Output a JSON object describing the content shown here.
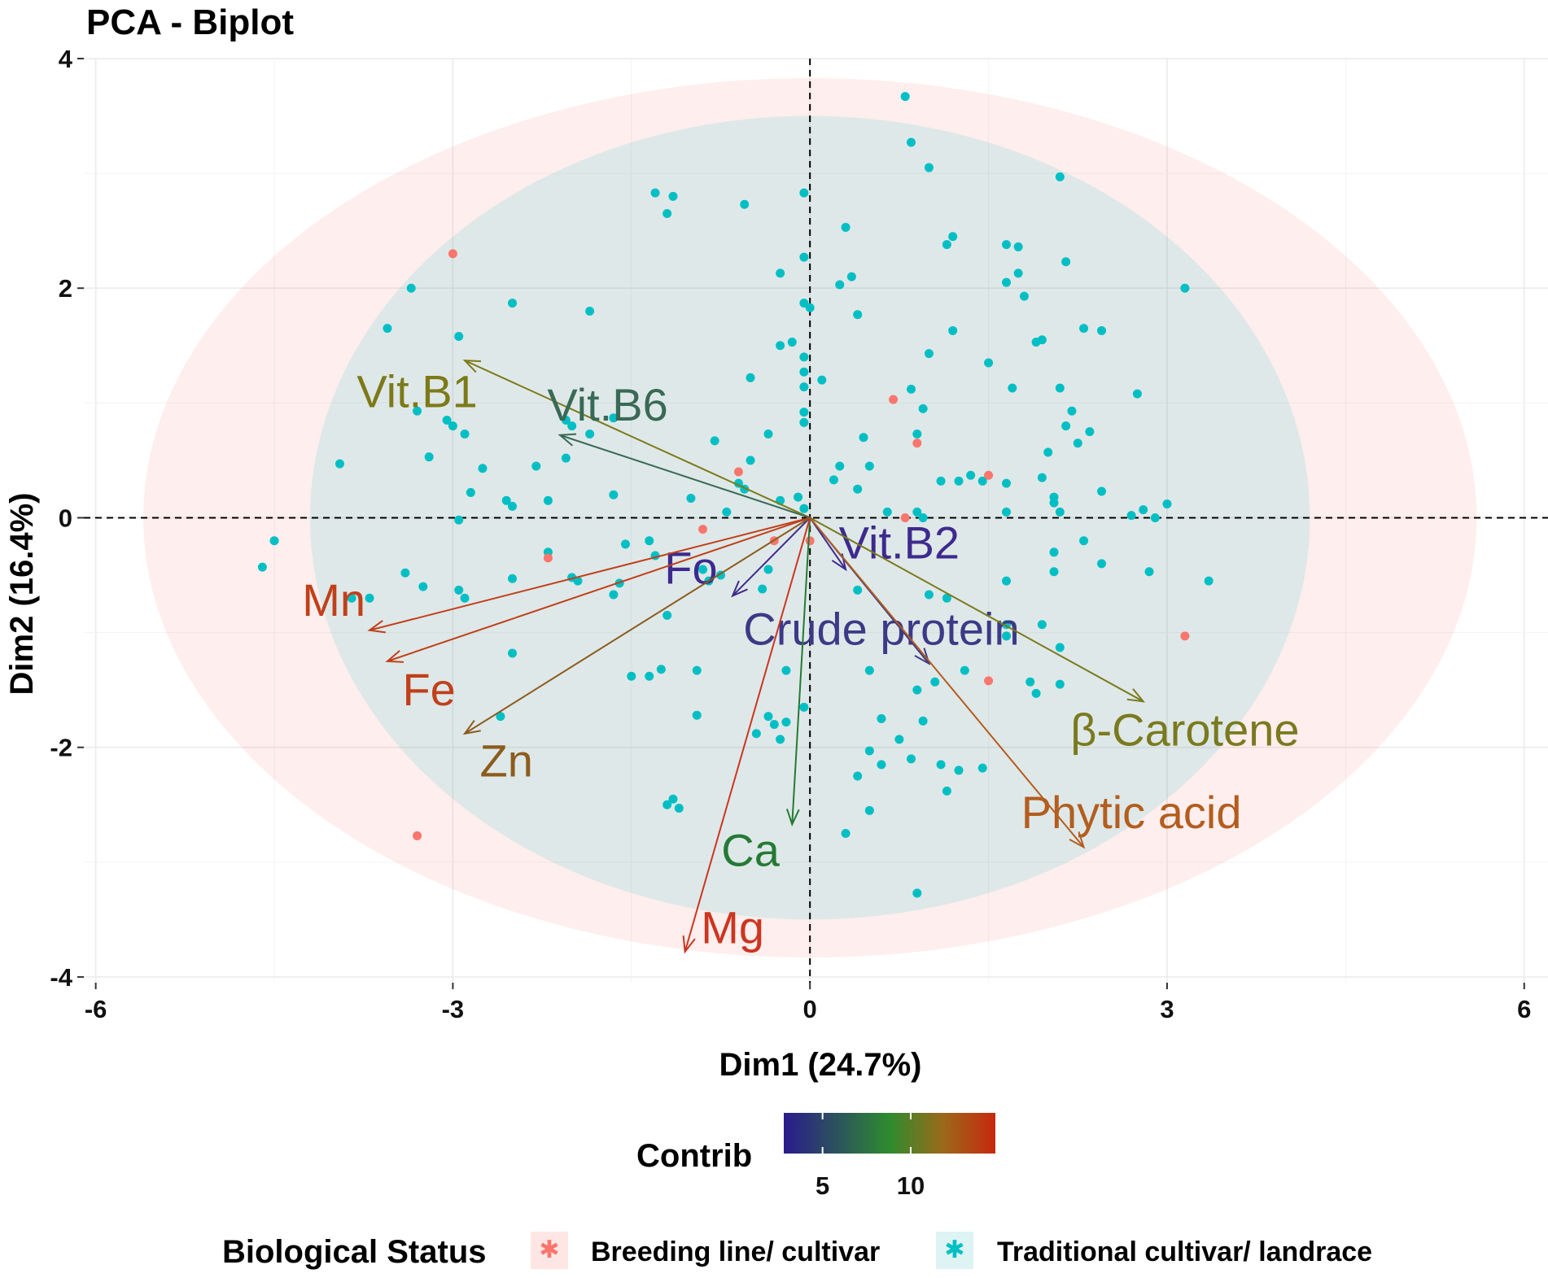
{
  "chart_data": {
    "type": "scatter",
    "title": "PCA - Biplot",
    "xlabel": "Dim1 (24.7%)",
    "ylabel": "Dim2 (16.4%)",
    "xlim": [
      -6.1,
      6.2
    ],
    "ylim": [
      -4.05,
      4.0
    ],
    "x_ticks": [
      -6,
      -3,
      0,
      3,
      6
    ],
    "y_ticks": [
      -4,
      -2,
      0,
      2,
      4
    ],
    "grid": true,
    "reference_lines": {
      "x": 0,
      "y": 0,
      "style": "dashed"
    },
    "groups": [
      {
        "name": "Breeding line/ cultivar",
        "color": "#F8766D"
      },
      {
        "name": "Traditional cultivar/ landrace",
        "color": "#00BFC4"
      }
    ],
    "ellipses": [
      {
        "group": "Breeding line/ cultivar",
        "center": [
          0.0,
          0.0
        ],
        "rx": 5.6,
        "ry": 3.83,
        "color": "#F8766D"
      },
      {
        "group": "Traditional cultivar/ landrace",
        "center": [
          0.0,
          0.0
        ],
        "rx": 4.2,
        "ry": 3.5,
        "color": "#00BFC4"
      }
    ],
    "points": {
      "Breeding line/ cultivar": [
        [
          -3.0,
          2.3
        ],
        [
          -3.3,
          -2.77
        ],
        [
          0.7,
          1.03
        ],
        [
          0.9,
          0.65
        ],
        [
          1.5,
          0.37
        ],
        [
          -0.6,
          0.4
        ],
        [
          -0.9,
          -0.1
        ],
        [
          -2.2,
          -0.35
        ],
        [
          -0.3,
          -0.2
        ],
        [
          0.8,
          0.0
        ],
        [
          1.5,
          -1.42
        ],
        [
          3.15,
          -1.03
        ],
        [
          0.0,
          -0.2
        ]
      ],
      "Traditional cultivar/ landrace": [
        [
          0.8,
          3.67
        ],
        [
          0.85,
          3.27
        ],
        [
          1.0,
          3.05
        ],
        [
          2.1,
          2.97
        ],
        [
          -1.3,
          2.83
        ],
        [
          -1.15,
          2.8
        ],
        [
          -1.2,
          2.65
        ],
        [
          -0.55,
          2.73
        ],
        [
          -0.05,
          2.83
        ],
        [
          0.3,
          2.53
        ],
        [
          1.2,
          2.45
        ],
        [
          1.15,
          2.38
        ],
        [
          1.65,
          2.38
        ],
        [
          1.75,
          2.36
        ],
        [
          2.15,
          2.23
        ],
        [
          -0.05,
          2.27
        ],
        [
          -0.25,
          2.13
        ],
        [
          0.35,
          2.1
        ],
        [
          0.25,
          2.03
        ],
        [
          1.75,
          2.13
        ],
        [
          1.65,
          2.05
        ],
        [
          -0.05,
          1.87
        ],
        [
          0.0,
          1.83
        ],
        [
          3.15,
          2.0
        ],
        [
          1.8,
          1.93
        ],
        [
          -3.35,
          2.0
        ],
        [
          -2.5,
          1.87
        ],
        [
          -1.85,
          1.8
        ],
        [
          0.4,
          1.77
        ],
        [
          -3.55,
          1.65
        ],
        [
          -2.95,
          1.58
        ],
        [
          1.2,
          1.63
        ],
        [
          2.3,
          1.65
        ],
        [
          2.45,
          1.63
        ],
        [
          1.9,
          1.53
        ],
        [
          1.95,
          1.55
        ],
        [
          -0.25,
          1.5
        ],
        [
          -0.15,
          1.53
        ],
        [
          -0.05,
          1.4
        ],
        [
          1.0,
          1.43
        ],
        [
          1.5,
          1.35
        ],
        [
          -0.5,
          1.22
        ],
        [
          -0.05,
          1.27
        ],
        [
          0.1,
          1.2
        ],
        [
          -0.05,
          1.14
        ],
        [
          0.85,
          1.12
        ],
        [
          1.7,
          1.13
        ],
        [
          2.1,
          1.13
        ],
        [
          2.75,
          1.08
        ],
        [
          0.95,
          0.95
        ],
        [
          2.2,
          0.93
        ],
        [
          -3.3,
          0.93
        ],
        [
          -3.05,
          0.85
        ],
        [
          -3.0,
          0.8
        ],
        [
          -2.9,
          0.73
        ],
        [
          -2.05,
          0.85
        ],
        [
          -2.0,
          0.8
        ],
        [
          -1.65,
          0.87
        ],
        [
          -1.85,
          0.73
        ],
        [
          -0.05,
          0.92
        ],
        [
          -0.05,
          0.83
        ],
        [
          -0.35,
          0.73
        ],
        [
          0.45,
          0.7
        ],
        [
          0.9,
          0.73
        ],
        [
          2.15,
          0.8
        ],
        [
          2.35,
          0.75
        ],
        [
          -0.8,
          0.67
        ],
        [
          2.25,
          0.65
        ],
        [
          2.0,
          0.57
        ],
        [
          -3.2,
          0.53
        ],
        [
          -3.95,
          0.47
        ],
        [
          -2.75,
          0.43
        ],
        [
          -2.3,
          0.45
        ],
        [
          -2.05,
          0.52
        ],
        [
          -0.5,
          0.5
        ],
        [
          0.25,
          0.45
        ],
        [
          0.5,
          0.45
        ],
        [
          1.25,
          0.32
        ],
        [
          1.35,
          0.37
        ],
        [
          1.95,
          0.35
        ],
        [
          1.65,
          0.3
        ],
        [
          -2.85,
          0.22
        ],
        [
          -1.65,
          0.2
        ],
        [
          -0.55,
          0.25
        ],
        [
          -0.6,
          0.3
        ],
        [
          0.2,
          0.33
        ],
        [
          1.1,
          0.32
        ],
        [
          1.45,
          0.32
        ],
        [
          -2.55,
          0.15
        ],
        [
          -2.2,
          0.15
        ],
        [
          -1.0,
          0.17
        ],
        [
          -0.25,
          0.15
        ],
        [
          -0.1,
          0.18
        ],
        [
          0.4,
          0.25
        ],
        [
          2.05,
          0.18
        ],
        [
          2.05,
          0.13
        ],
        [
          2.45,
          0.23
        ],
        [
          -2.95,
          -0.02
        ],
        [
          -2.5,
          0.1
        ],
        [
          -0.05,
          0.08
        ],
        [
          -0.7,
          0.05
        ],
        [
          0.65,
          0.05
        ],
        [
          0.9,
          0.05
        ],
        [
          0.95,
          0.0
        ],
        [
          1.65,
          0.05
        ],
        [
          2.1,
          0.05
        ],
        [
          2.7,
          0.02
        ],
        [
          2.8,
          0.07
        ],
        [
          3.0,
          0.12
        ],
        [
          2.9,
          0.0
        ],
        [
          3.35,
          -0.55
        ],
        [
          -4.5,
          -0.2
        ],
        [
          -4.6,
          -0.43
        ],
        [
          -3.4,
          -0.48
        ],
        [
          -3.85,
          -0.7
        ],
        [
          -3.7,
          -0.7
        ],
        [
          -3.25,
          -0.6
        ],
        [
          -2.95,
          -0.63
        ],
        [
          -2.9,
          -0.7
        ],
        [
          -2.5,
          -0.53
        ],
        [
          -2.2,
          -0.3
        ],
        [
          -2.0,
          -0.52
        ],
        [
          -1.95,
          -0.55
        ],
        [
          -1.65,
          -0.67
        ],
        [
          -1.55,
          -0.23
        ],
        [
          -1.6,
          -0.57
        ],
        [
          -1.35,
          -0.2
        ],
        [
          -1.3,
          -0.33
        ],
        [
          -0.9,
          -0.45
        ],
        [
          -0.75,
          -0.5
        ],
        [
          -0.35,
          -0.45
        ],
        [
          -0.4,
          -0.62
        ],
        [
          0.4,
          -0.63
        ],
        [
          1.0,
          -0.67
        ],
        [
          1.15,
          -0.7
        ],
        [
          1.65,
          -0.55
        ],
        [
          1.65,
          -0.93
        ],
        [
          1.95,
          -0.93
        ],
        [
          2.05,
          -0.3
        ],
        [
          2.05,
          -0.47
        ],
        [
          2.3,
          -0.2
        ],
        [
          2.45,
          -0.4
        ],
        [
          2.85,
          -0.47
        ],
        [
          1.65,
          -1.03
        ],
        [
          2.1,
          -1.13
        ],
        [
          -2.5,
          -1.18
        ],
        [
          -1.2,
          -0.85
        ],
        [
          -1.25,
          -1.32
        ],
        [
          -1.35,
          -1.38
        ],
        [
          -1.5,
          -1.38
        ],
        [
          -0.95,
          -1.33
        ],
        [
          -0.2,
          -1.33
        ],
        [
          0.5,
          -1.33
        ],
        [
          1.05,
          -1.43
        ],
        [
          1.3,
          -1.33
        ],
        [
          1.85,
          -1.43
        ],
        [
          1.9,
          -1.53
        ],
        [
          2.1,
          -1.45
        ],
        [
          0.9,
          -1.5
        ],
        [
          -0.95,
          -1.72
        ],
        [
          -0.35,
          -1.73
        ],
        [
          -0.45,
          -1.88
        ],
        [
          -0.3,
          -1.8
        ],
        [
          -0.2,
          -1.78
        ],
        [
          -0.25,
          -1.93
        ],
        [
          -0.05,
          -1.65
        ],
        [
          0.6,
          -1.75
        ],
        [
          0.95,
          -1.77
        ],
        [
          0.75,
          -1.93
        ],
        [
          0.5,
          -2.03
        ],
        [
          0.6,
          -2.15
        ],
        [
          0.4,
          -2.25
        ],
        [
          0.85,
          -2.1
        ],
        [
          1.1,
          -2.15
        ],
        [
          1.25,
          -2.2
        ],
        [
          1.45,
          -2.18
        ],
        [
          1.15,
          -2.38
        ],
        [
          0.5,
          -2.55
        ],
        [
          -1.15,
          -2.45
        ],
        [
          -1.2,
          -2.5
        ],
        [
          -1.1,
          -2.53
        ],
        [
          0.3,
          -2.75
        ],
        [
          0.9,
          -3.27
        ],
        [
          -2.6,
          -1.73
        ],
        [
          -0.85,
          -0.55
        ]
      ]
    },
    "variables": [
      {
        "name": "Vit.B1",
        "x": -2.9,
        "y": 1.37,
        "label_x": -3.3,
        "label_y": 1.07,
        "color": "#7C7A18"
      },
      {
        "name": "Vit.B6",
        "x": -2.1,
        "y": 0.72,
        "label_x": -1.7,
        "label_y": 0.95,
        "color": "#386A56"
      },
      {
        "name": "Vit.B2",
        "x": 0.3,
        "y": -0.45,
        "label_x": 0.75,
        "label_y": -0.25,
        "color": "#3D2A8E"
      },
      {
        "name": "Fo",
        "x": -0.65,
        "y": -0.68,
        "label_x": -1.0,
        "label_y": -0.47,
        "color": "#3D2A8E"
      },
      {
        "name": "Mn",
        "x": -3.7,
        "y": -0.98,
        "label_x": -4.0,
        "label_y": -0.75,
        "color": "#C0401A"
      },
      {
        "name": "Fe",
        "x": -3.55,
        "y": -1.25,
        "label_x": -3.2,
        "label_y": -1.53,
        "color": "#C0401A"
      },
      {
        "name": "Zn",
        "x": -2.9,
        "y": -1.88,
        "label_x": -2.55,
        "label_y": -2.15,
        "color": "#8C5C1E"
      },
      {
        "name": "Crude protein",
        "x": 1.0,
        "y": -1.27,
        "label_x": 0.6,
        "label_y": -1.0,
        "color": "#3C3A86"
      },
      {
        "name": "β-Carotene",
        "x": 2.8,
        "y": -1.6,
        "label_x": 3.15,
        "label_y": -1.88,
        "color": "#7A7A1E"
      },
      {
        "name": "Phytic acid",
        "x": 2.3,
        "y": -2.87,
        "label_x": 2.7,
        "label_y": -2.6,
        "color": "#B35D1E"
      },
      {
        "name": "Ca",
        "x": -0.15,
        "y": -2.67,
        "label_x": -0.5,
        "label_y": -2.93,
        "color": "#257A35"
      },
      {
        "name": "Mg",
        "x": -1.05,
        "y": -3.78,
        "label_x": -0.65,
        "label_y": -3.6,
        "color": "#CC3520"
      }
    ],
    "colorbar": {
      "title": "Contrib",
      "ticks": [
        5,
        10
      ],
      "range": [
        2.8,
        14.8
      ],
      "colors": [
        "#2A1B8C",
        "#2E8B2E",
        "#9A6A1A",
        "#C8280E"
      ]
    },
    "legend": {
      "title": "Biological Status",
      "placement": "bottom",
      "items": [
        "Breeding line/ cultivar",
        "Traditional cultivar/ landrace"
      ]
    }
  }
}
